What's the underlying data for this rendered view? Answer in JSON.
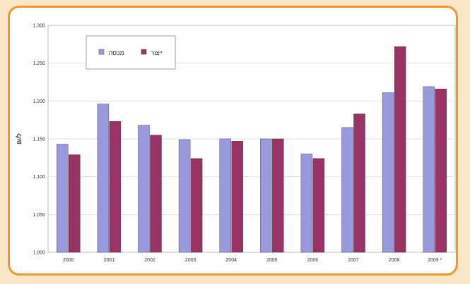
{
  "chart_data": {
    "type": "bar",
    "categories": [
      "2000",
      "2001",
      "2002",
      "2003",
      "2004",
      "2005",
      "2006",
      "2007",
      "2008",
      "2009 *"
    ],
    "series": [
      {
        "name": "מכסה",
        "color": "#9999dd",
        "values": [
          1.143,
          1.196,
          1.168,
          1.149,
          1.15,
          1.15,
          1.13,
          1.165,
          1.211,
          1.219
        ]
      },
      {
        "name": "ייצור",
        "color": "#993366",
        "values": [
          1.129,
          1.173,
          1.155,
          1.124,
          1.147,
          1.15,
          1.124,
          1.183,
          1.272,
          1.216
        ]
      }
    ],
    "yticks": [
      "1.000",
      "1.050",
      "1.100",
      "1.150",
      "1.200",
      "1.250",
      "1.300"
    ],
    "ylim": [
      1.0,
      1.3
    ],
    "ylabel": "₪/ל",
    "xlabel": "",
    "title": "",
    "grid": true,
    "legend_position": "top-left"
  }
}
